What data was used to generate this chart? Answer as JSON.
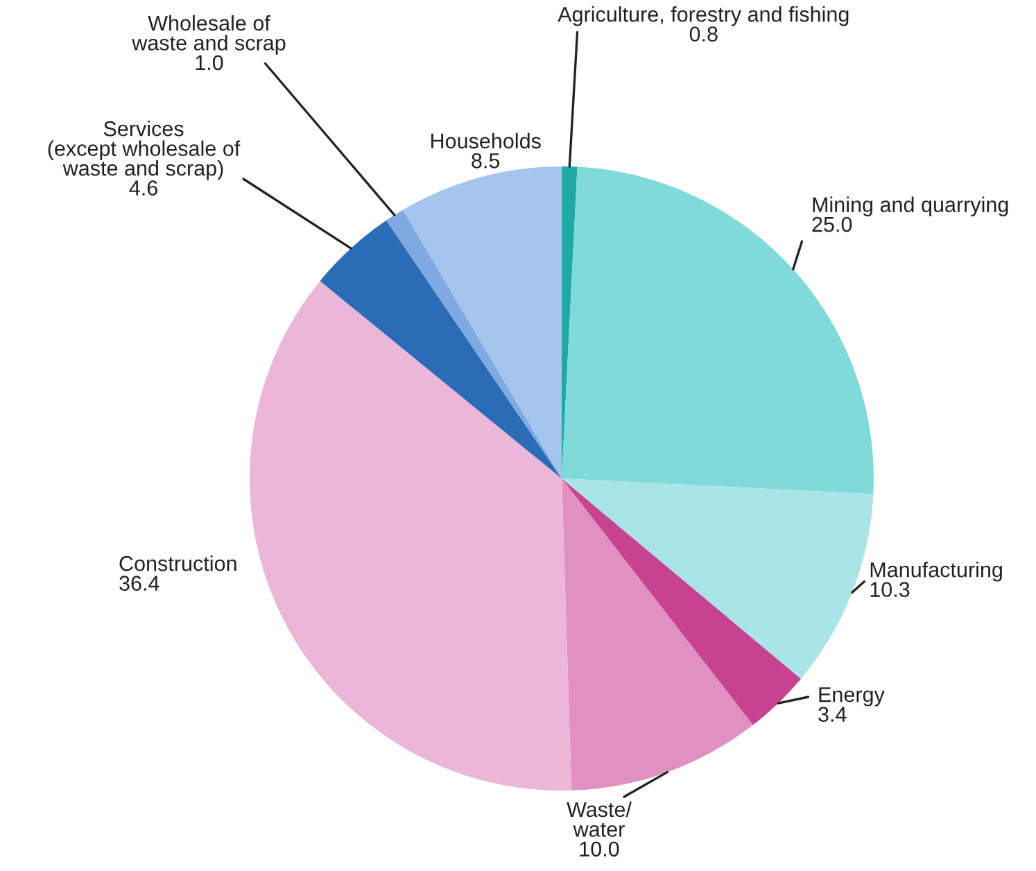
{
  "chart_data": {
    "type": "pie",
    "categories": [
      "Agriculture, forestry and fishing",
      "Mining and quarrying",
      "Manufacturing",
      "Energy",
      "Waste/\nwater",
      "Construction",
      "Services\n(except wholesale of\nwaste and scrap)",
      "Wholesale of\nwaste and scrap",
      "Households"
    ],
    "values": [
      0.8,
      25.0,
      10.3,
      3.4,
      10.0,
      36.4,
      4.6,
      1.0,
      8.5
    ],
    "value_labels": [
      "0.8",
      "25.0",
      "10.3",
      "3.4",
      "10.0",
      "36.4",
      "4.6",
      "1.0",
      "8.5"
    ],
    "colors": [
      "#1ea9a3",
      "#7fdad9",
      "#a9e5e7",
      "#c8438f",
      "#e190c2",
      "#ebb6d7",
      "#2b6cb6",
      "#7fa9e1",
      "#a4c5ec"
    ]
  }
}
